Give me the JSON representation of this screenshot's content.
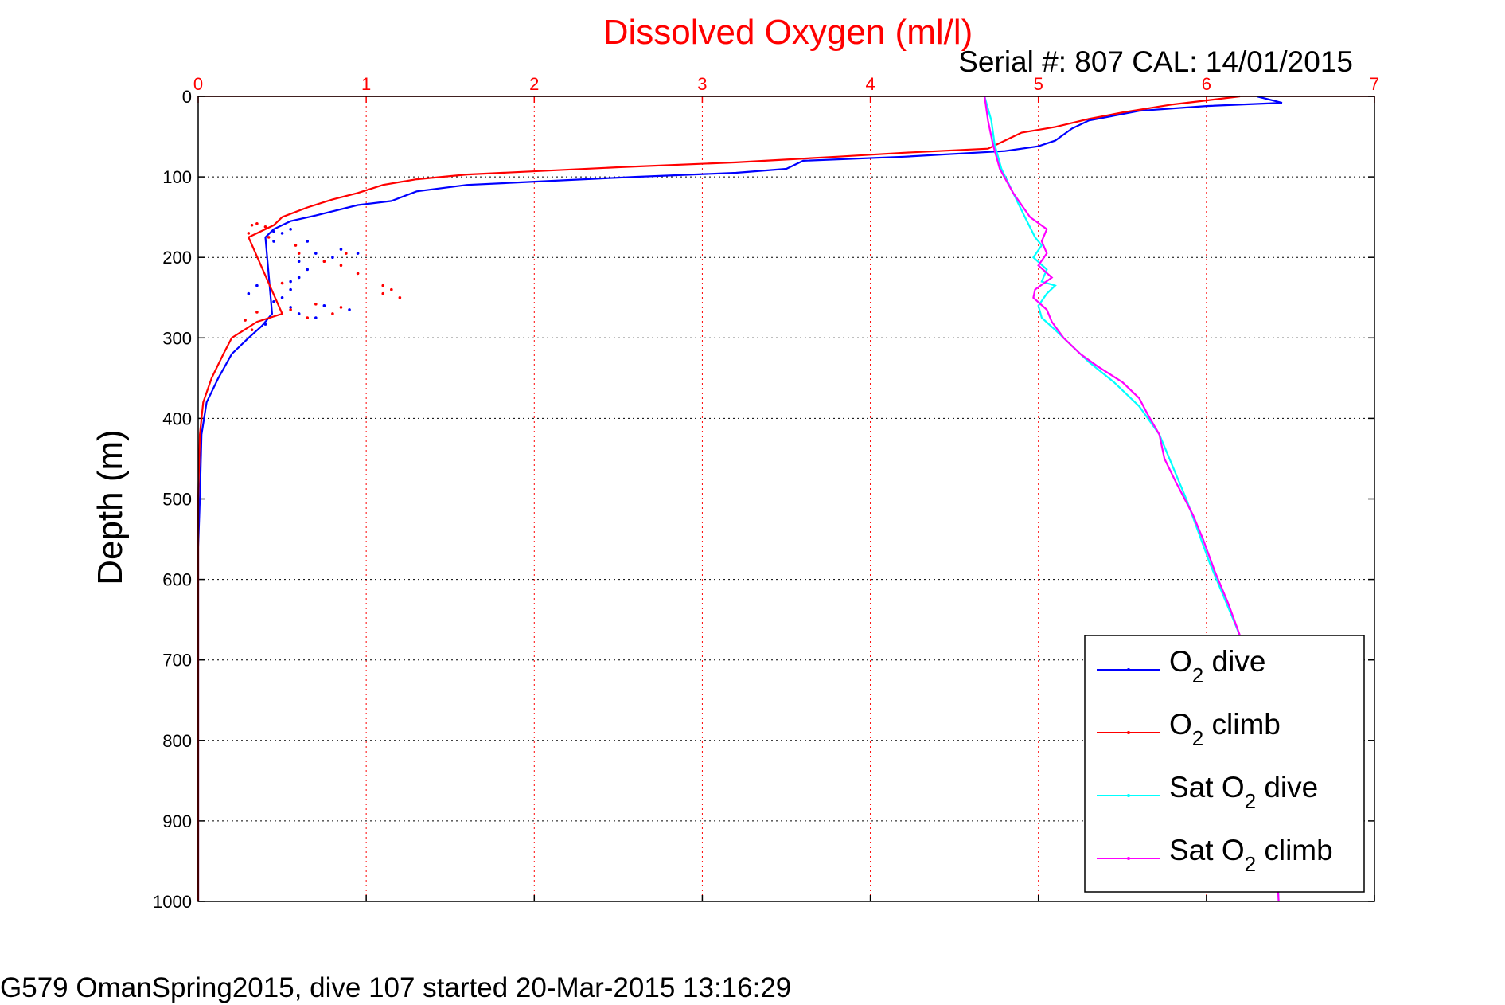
{
  "chart_data": {
    "type": "line",
    "title": "Dissolved Oxygen (ml/l)",
    "subtitle": "Serial #: 807  CAL: 14/01/2015",
    "xlabel": "",
    "ylabel": "Depth (m)",
    "footer": "G579 OmanSpring2015, dive 107 started 20-Mar-2015 13:16:29",
    "xlim": [
      0,
      7
    ],
    "ylim": [
      0,
      1000
    ],
    "y_reversed": true,
    "x_axis_position": "top",
    "grid": true,
    "legend_position": "bottom-right",
    "x_ticks": [
      "0",
      "1",
      "2",
      "3",
      "4",
      "5",
      "6",
      "7"
    ],
    "y_ticks": [
      "0",
      "100",
      "200",
      "300",
      "400",
      "500",
      "600",
      "700",
      "800",
      "900",
      "1000"
    ],
    "series": [
      {
        "name_main": "O",
        "name_sub": "2",
        "name_rest": " dive",
        "color": "#0000ff",
        "points": [
          [
            6.3,
            0
          ],
          [
            6.45,
            8
          ],
          [
            6.0,
            12
          ],
          [
            5.6,
            18
          ],
          [
            5.3,
            30
          ],
          [
            5.2,
            40
          ],
          [
            5.1,
            55
          ],
          [
            5.0,
            62
          ],
          [
            4.8,
            68
          ],
          [
            4.2,
            75
          ],
          [
            3.6,
            80
          ],
          [
            3.5,
            90
          ],
          [
            3.2,
            95
          ],
          [
            2.6,
            100
          ],
          [
            1.6,
            110
          ],
          [
            1.3,
            118
          ],
          [
            1.15,
            130
          ],
          [
            0.95,
            135
          ],
          [
            0.7,
            148
          ],
          [
            0.55,
            155
          ],
          [
            0.45,
            165
          ],
          [
            0.4,
            175
          ],
          [
            0.44,
            270
          ],
          [
            0.38,
            285
          ],
          [
            0.3,
            300
          ],
          [
            0.2,
            320
          ],
          [
            0.12,
            350
          ],
          [
            0.05,
            380
          ],
          [
            0.02,
            420
          ],
          [
            0.01,
            500
          ],
          [
            0.0,
            560
          ],
          [
            0.0,
            1000
          ]
        ]
      },
      {
        "name_main": "O",
        "name_sub": "2",
        "name_rest": " climb",
        "color": "#ff0000",
        "points": [
          [
            6.2,
            0
          ],
          [
            6.0,
            5
          ],
          [
            5.8,
            10
          ],
          [
            5.5,
            20
          ],
          [
            5.3,
            28
          ],
          [
            5.1,
            38
          ],
          [
            4.9,
            45
          ],
          [
            4.8,
            55
          ],
          [
            4.7,
            65
          ],
          [
            4.2,
            70
          ],
          [
            3.8,
            75
          ],
          [
            3.2,
            82
          ],
          [
            2.5,
            88
          ],
          [
            1.6,
            97
          ],
          [
            1.3,
            103
          ],
          [
            1.1,
            110
          ],
          [
            0.95,
            120
          ],
          [
            0.8,
            128
          ],
          [
            0.65,
            138
          ],
          [
            0.5,
            150
          ],
          [
            0.45,
            160
          ],
          [
            0.3,
            175
          ],
          [
            0.5,
            270
          ],
          [
            0.35,
            280
          ],
          [
            0.2,
            300
          ],
          [
            0.15,
            320
          ],
          [
            0.08,
            350
          ],
          [
            0.03,
            380
          ],
          [
            0.01,
            420
          ],
          [
            0.0,
            500
          ],
          [
            0.0,
            1000
          ]
        ]
      },
      {
        "name_main": "Sat O",
        "name_sub": "2",
        "name_rest": " dive",
        "color": "#00ffff",
        "points": [
          [
            4.68,
            0
          ],
          [
            4.72,
            30
          ],
          [
            4.74,
            60
          ],
          [
            4.78,
            90
          ],
          [
            4.85,
            120
          ],
          [
            4.92,
            150
          ],
          [
            4.98,
            175
          ],
          [
            5.02,
            185
          ],
          [
            4.97,
            200
          ],
          [
            5.05,
            215
          ],
          [
            5.02,
            230
          ],
          [
            5.1,
            235
          ],
          [
            5.05,
            245
          ],
          [
            5.0,
            260
          ],
          [
            5.02,
            275
          ],
          [
            5.1,
            290
          ],
          [
            5.2,
            310
          ],
          [
            5.3,
            330
          ],
          [
            5.45,
            355
          ],
          [
            5.6,
            385
          ],
          [
            5.72,
            420
          ],
          [
            5.8,
            460
          ],
          [
            5.88,
            500
          ],
          [
            5.95,
            540
          ],
          [
            6.02,
            580
          ],
          [
            6.1,
            620
          ],
          [
            6.18,
            660
          ],
          [
            6.25,
            700
          ],
          [
            6.28,
            750
          ],
          [
            6.32,
            800
          ],
          [
            6.36,
            850
          ],
          [
            6.39,
            900
          ],
          [
            6.42,
            950
          ],
          [
            6.43,
            1000
          ]
        ]
      },
      {
        "name_main": "Sat O",
        "name_sub": "2",
        "name_rest": " climb",
        "color": "#ff00ff",
        "points": [
          [
            4.68,
            0
          ],
          [
            4.7,
            30
          ],
          [
            4.73,
            60
          ],
          [
            4.77,
            90
          ],
          [
            4.85,
            120
          ],
          [
            4.95,
            150
          ],
          [
            5.05,
            165
          ],
          [
            5.02,
            180
          ],
          [
            5.05,
            195
          ],
          [
            5.0,
            210
          ],
          [
            5.08,
            225
          ],
          [
            4.98,
            240
          ],
          [
            4.97,
            250
          ],
          [
            5.05,
            265
          ],
          [
            5.08,
            280
          ],
          [
            5.15,
            300
          ],
          [
            5.25,
            320
          ],
          [
            5.35,
            335
          ],
          [
            5.5,
            355
          ],
          [
            5.6,
            375
          ],
          [
            5.65,
            395
          ],
          [
            5.72,
            420
          ],
          [
            5.75,
            450
          ],
          [
            5.82,
            480
          ],
          [
            5.92,
            520
          ],
          [
            5.98,
            550
          ],
          [
            6.05,
            590
          ],
          [
            6.13,
            630
          ],
          [
            6.2,
            670
          ],
          [
            6.25,
            710
          ],
          [
            6.3,
            760
          ],
          [
            6.34,
            810
          ],
          [
            6.37,
            860
          ],
          [
            6.4,
            910
          ],
          [
            6.42,
            960
          ],
          [
            6.43,
            1000
          ]
        ]
      }
    ],
    "scatter_blue": [
      [
        0.45,
        180
      ],
      [
        0.5,
        170
      ],
      [
        0.55,
        165
      ],
      [
        0.45,
        168
      ],
      [
        0.8,
        200
      ],
      [
        0.7,
        195
      ],
      [
        0.65,
        215
      ],
      [
        0.6,
        225
      ],
      [
        0.55,
        230
      ],
      [
        0.35,
        235
      ],
      [
        0.3,
        245
      ],
      [
        0.45,
        255
      ],
      [
        0.55,
        262
      ],
      [
        0.6,
        270
      ],
      [
        0.7,
        275
      ],
      [
        0.9,
        265
      ],
      [
        0.95,
        195
      ],
      [
        0.85,
        190
      ],
      [
        0.6,
        205
      ],
      [
        0.65,
        180
      ],
      [
        0.5,
        250
      ],
      [
        0.4,
        283
      ],
      [
        0.55,
        240
      ],
      [
        0.75,
        260
      ]
    ],
    "scatter_red": [
      [
        0.3,
        170
      ],
      [
        0.32,
        160
      ],
      [
        0.35,
        158
      ],
      [
        0.4,
        162
      ],
      [
        0.42,
        175
      ],
      [
        0.58,
        185
      ],
      [
        0.6,
        195
      ],
      [
        0.75,
        205
      ],
      [
        0.88,
        195
      ],
      [
        0.85,
        210
      ],
      [
        0.95,
        220
      ],
      [
        1.1,
        235
      ],
      [
        1.15,
        240
      ],
      [
        1.2,
        250
      ],
      [
        1.1,
        245
      ],
      [
        0.85,
        262
      ],
      [
        0.8,
        270
      ],
      [
        0.65,
        275
      ],
      [
        0.55,
        265
      ],
      [
        0.7,
        258
      ],
      [
        0.35,
        268
      ],
      [
        0.28,
        278
      ],
      [
        0.32,
        290
      ],
      [
        0.5,
        232
      ]
    ]
  }
}
